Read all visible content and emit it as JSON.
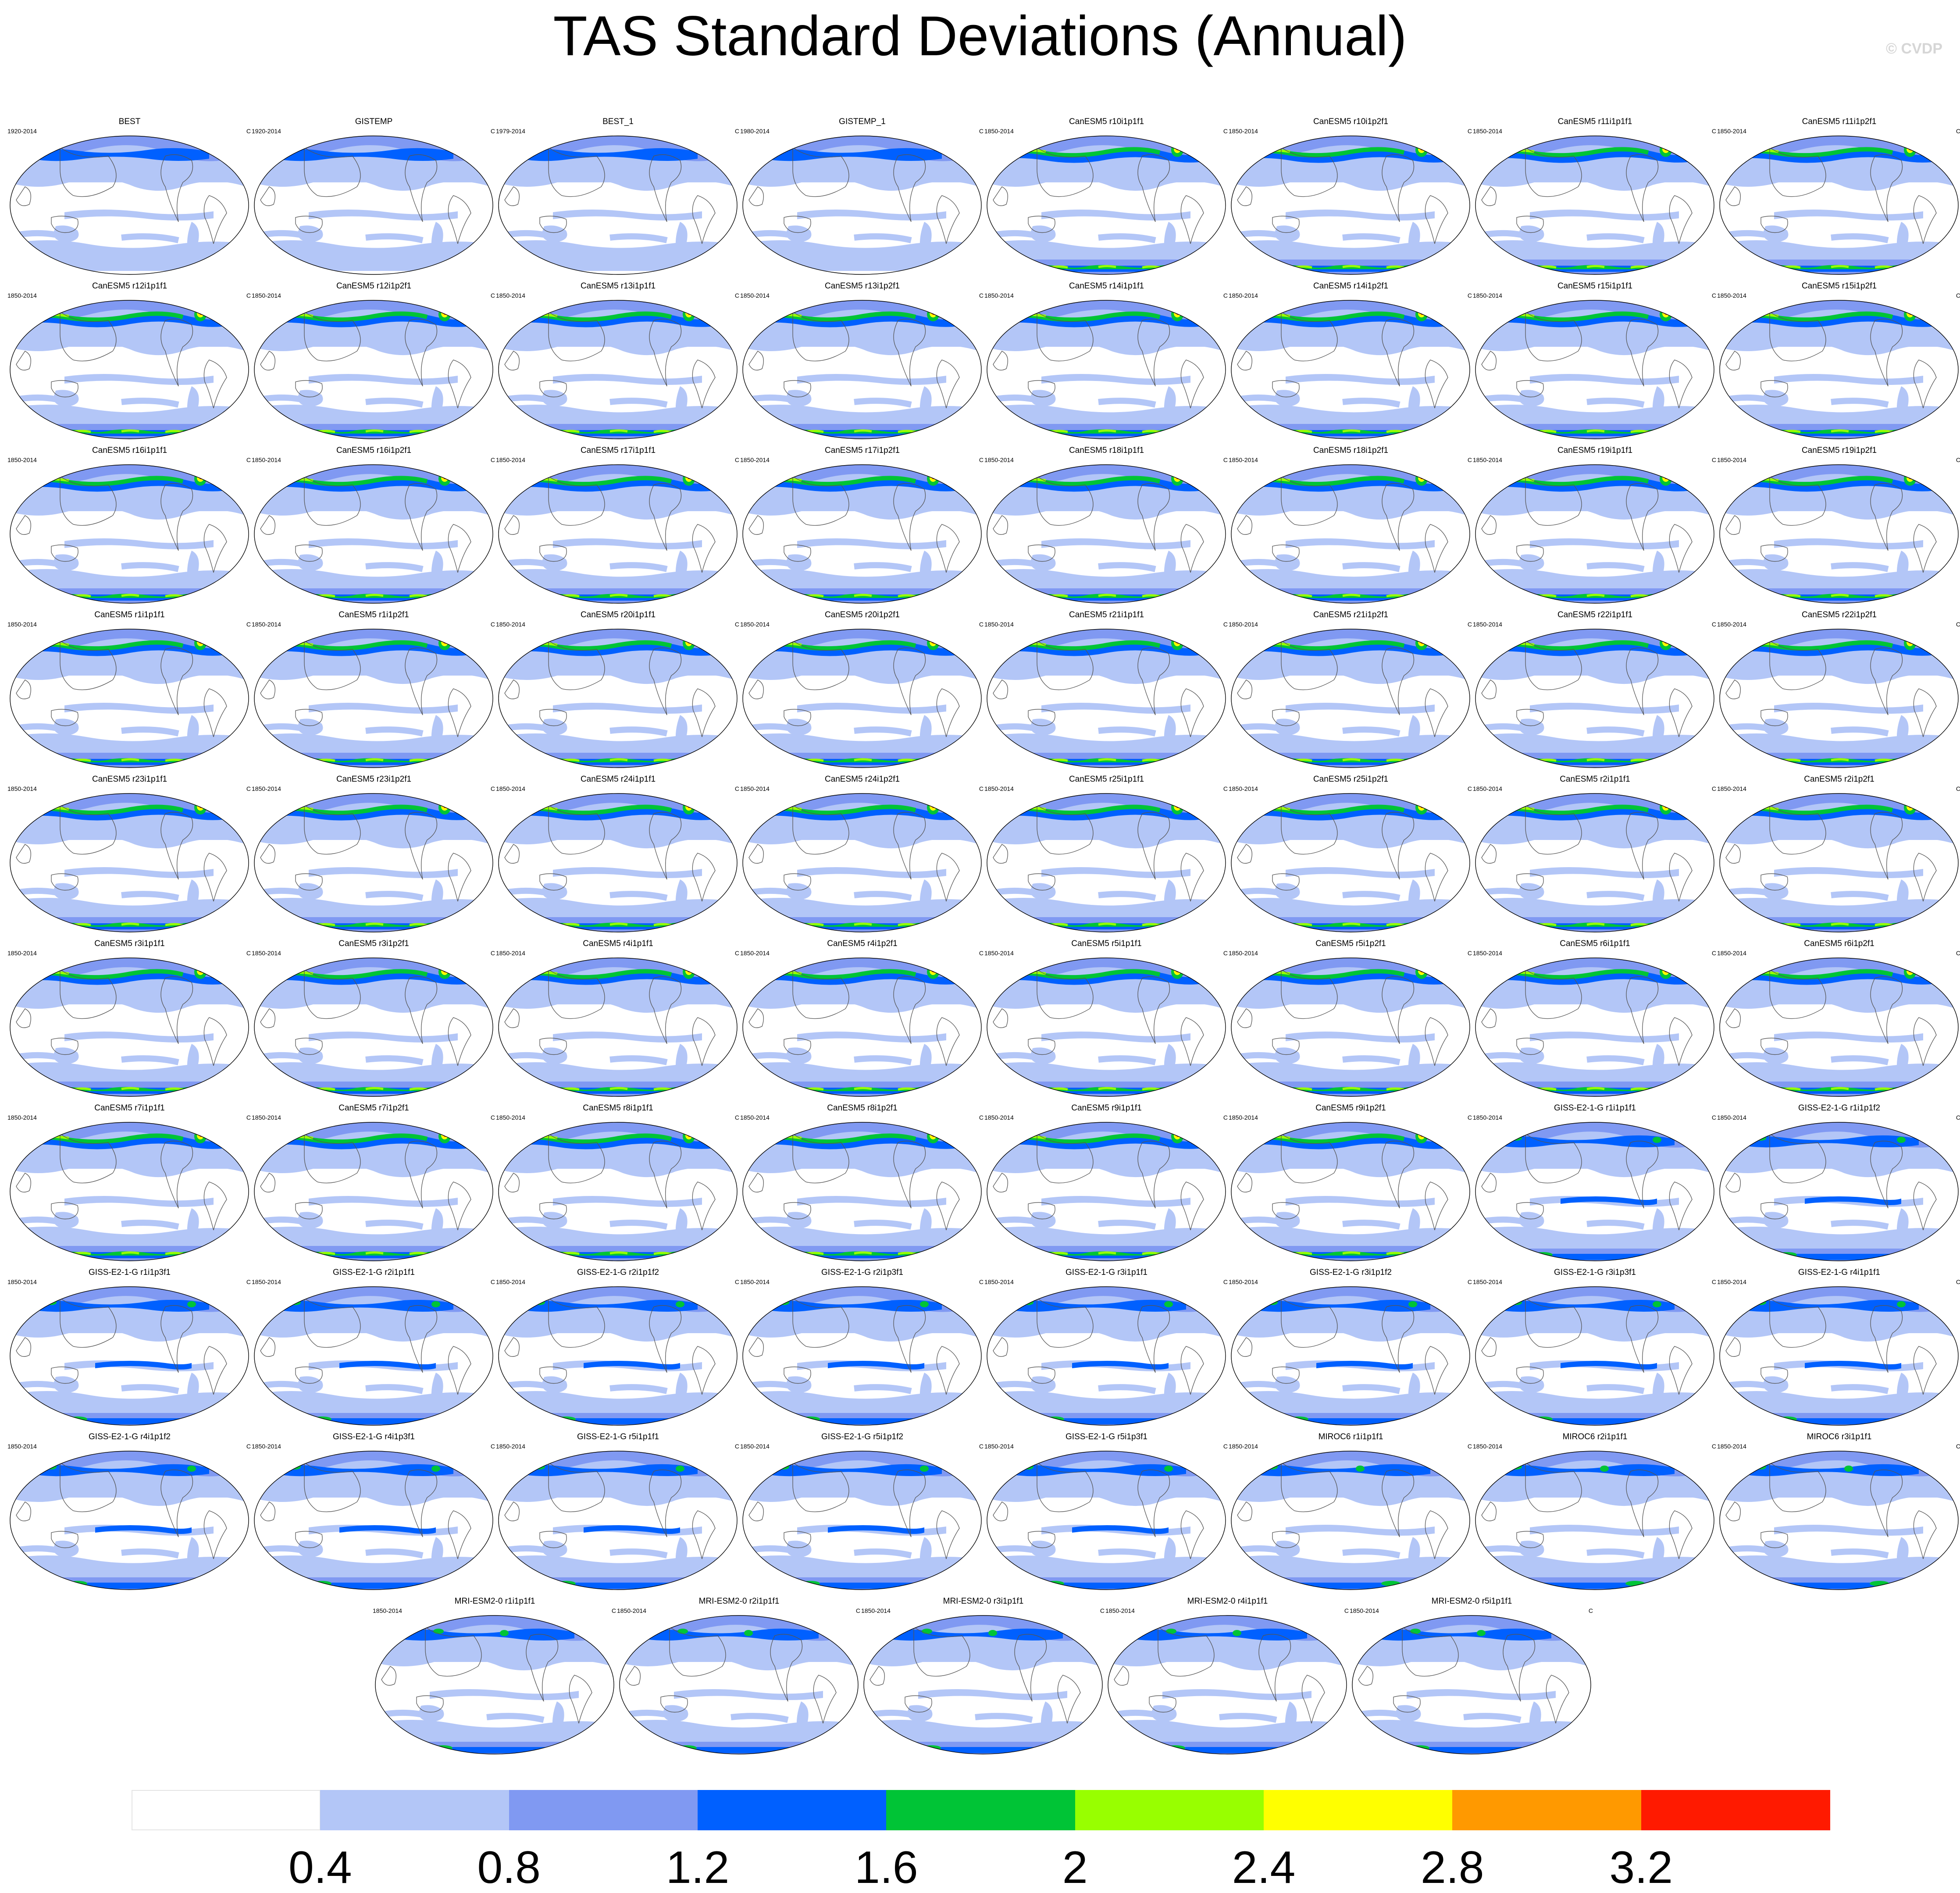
{
  "title": "TAS Standard Deviations (Annual)",
  "credit": "© CVDP",
  "colorbar": {
    "colors": [
      "#ffffff",
      "#b3c6f7",
      "#8099f2",
      "#0060ff",
      "#00c436",
      "#98ff00",
      "#ffff00",
      "#ff9900",
      "#ff1a00"
    ],
    "labels": [
      "0.4",
      "0.8",
      "1.2",
      "1.6",
      "2",
      "2.4",
      "2.8",
      "3.2"
    ]
  },
  "panel_rows": [
    [
      {
        "name": "BEST",
        "years": "1920-2014",
        "units": "C",
        "style": "obs"
      },
      {
        "name": "GISTEMP",
        "years": "1920-2014",
        "units": "C",
        "style": "obs"
      },
      {
        "name": "BEST_1",
        "years": "1979-2014",
        "units": "C",
        "style": "obs"
      },
      {
        "name": "GISTEMP_1",
        "years": "1980-2014",
        "units": "C",
        "style": "obs"
      },
      {
        "name": "CanESM5 r10i1p1f1",
        "years": "1850-2014",
        "units": "C",
        "style": "canesm"
      },
      {
        "name": "CanESM5 r10i1p2f1",
        "years": "1850-2014",
        "units": "C",
        "style": "canesm"
      },
      {
        "name": "CanESM5 r11i1p1f1",
        "years": "1850-2014",
        "units": "C",
        "style": "canesm"
      },
      {
        "name": "CanESM5 r11i1p2f1",
        "years": "1850-2014",
        "units": "C",
        "style": "canesm"
      }
    ],
    [
      {
        "name": "CanESM5 r12i1p1f1",
        "years": "1850-2014",
        "units": "C",
        "style": "canesm"
      },
      {
        "name": "CanESM5 r12i1p2f1",
        "years": "1850-2014",
        "units": "C",
        "style": "canesm"
      },
      {
        "name": "CanESM5 r13i1p1f1",
        "years": "1850-2014",
        "units": "C",
        "style": "canesm"
      },
      {
        "name": "CanESM5 r13i1p2f1",
        "years": "1850-2014",
        "units": "C",
        "style": "canesm"
      },
      {
        "name": "CanESM5 r14i1p1f1",
        "years": "1850-2014",
        "units": "C",
        "style": "canesm"
      },
      {
        "name": "CanESM5 r14i1p2f1",
        "years": "1850-2014",
        "units": "C",
        "style": "canesm"
      },
      {
        "name": "CanESM5 r15i1p1f1",
        "years": "1850-2014",
        "units": "C",
        "style": "canesm"
      },
      {
        "name": "CanESM5 r15i1p2f1",
        "years": "1850-2014",
        "units": "C",
        "style": "canesm"
      }
    ],
    [
      {
        "name": "CanESM5 r16i1p1f1",
        "years": "1850-2014",
        "units": "C",
        "style": "canesm"
      },
      {
        "name": "CanESM5 r16i1p2f1",
        "years": "1850-2014",
        "units": "C",
        "style": "canesm"
      },
      {
        "name": "CanESM5 r17i1p1f1",
        "years": "1850-2014",
        "units": "C",
        "style": "canesm"
      },
      {
        "name": "CanESM5 r17i1p2f1",
        "years": "1850-2014",
        "units": "C",
        "style": "canesm"
      },
      {
        "name": "CanESM5 r18i1p1f1",
        "years": "1850-2014",
        "units": "C",
        "style": "canesm"
      },
      {
        "name": "CanESM5 r18i1p2f1",
        "years": "1850-2014",
        "units": "C",
        "style": "canesm"
      },
      {
        "name": "CanESM5 r19i1p1f1",
        "years": "1850-2014",
        "units": "C",
        "style": "canesm"
      },
      {
        "name": "CanESM5 r19i1p2f1",
        "years": "1850-2014",
        "units": "C",
        "style": "canesm"
      }
    ],
    [
      {
        "name": "CanESM5 r1i1p1f1",
        "years": "1850-2014",
        "units": "C",
        "style": "canesm"
      },
      {
        "name": "CanESM5 r1i1p2f1",
        "years": "1850-2014",
        "units": "C",
        "style": "canesm"
      },
      {
        "name": "CanESM5 r20i1p1f1",
        "years": "1850-2014",
        "units": "C",
        "style": "canesm"
      },
      {
        "name": "CanESM5 r20i1p2f1",
        "years": "1850-2014",
        "units": "C",
        "style": "canesm"
      },
      {
        "name": "CanESM5 r21i1p1f1",
        "years": "1850-2014",
        "units": "C",
        "style": "canesm"
      },
      {
        "name": "CanESM5 r21i1p2f1",
        "years": "1850-2014",
        "units": "C",
        "style": "canesm"
      },
      {
        "name": "CanESM5 r22i1p1f1",
        "years": "1850-2014",
        "units": "C",
        "style": "canesm"
      },
      {
        "name": "CanESM5 r22i1p2f1",
        "years": "1850-2014",
        "units": "C",
        "style": "canesm"
      }
    ],
    [
      {
        "name": "CanESM5 r23i1p1f1",
        "years": "1850-2014",
        "units": "C",
        "style": "canesm"
      },
      {
        "name": "CanESM5 r23i1p2f1",
        "years": "1850-2014",
        "units": "C",
        "style": "canesm"
      },
      {
        "name": "CanESM5 r24i1p1f1",
        "years": "1850-2014",
        "units": "C",
        "style": "canesm"
      },
      {
        "name": "CanESM5 r24i1p2f1",
        "years": "1850-2014",
        "units": "C",
        "style": "canesm"
      },
      {
        "name": "CanESM5 r25i1p1f1",
        "years": "1850-2014",
        "units": "C",
        "style": "canesm"
      },
      {
        "name": "CanESM5 r25i1p2f1",
        "years": "1850-2014",
        "units": "C",
        "style": "canesm"
      },
      {
        "name": "CanESM5 r2i1p1f1",
        "years": "1850-2014",
        "units": "C",
        "style": "canesm"
      },
      {
        "name": "CanESM5 r2i1p2f1",
        "years": "1850-2014",
        "units": "C",
        "style": "canesm"
      }
    ],
    [
      {
        "name": "CanESM5 r3i1p1f1",
        "years": "1850-2014",
        "units": "C",
        "style": "canesm"
      },
      {
        "name": "CanESM5 r3i1p2f1",
        "years": "1850-2014",
        "units": "C",
        "style": "canesm"
      },
      {
        "name": "CanESM5 r4i1p1f1",
        "years": "1850-2014",
        "units": "C",
        "style": "canesm"
      },
      {
        "name": "CanESM5 r4i1p2f1",
        "years": "1850-2014",
        "units": "C",
        "style": "canesm"
      },
      {
        "name": "CanESM5 r5i1p1f1",
        "years": "1850-2014",
        "units": "C",
        "style": "canesm"
      },
      {
        "name": "CanESM5 r5i1p2f1",
        "years": "1850-2014",
        "units": "C",
        "style": "canesm"
      },
      {
        "name": "CanESM5 r6i1p1f1",
        "years": "1850-2014",
        "units": "C",
        "style": "canesm"
      },
      {
        "name": "CanESM5 r6i1p2f1",
        "years": "1850-2014",
        "units": "C",
        "style": "canesm"
      }
    ],
    [
      {
        "name": "CanESM5 r7i1p1f1",
        "years": "1850-2014",
        "units": "C",
        "style": "canesm"
      },
      {
        "name": "CanESM5 r7i1p2f1",
        "years": "1850-2014",
        "units": "C",
        "style": "canesm"
      },
      {
        "name": "CanESM5 r8i1p1f1",
        "years": "1850-2014",
        "units": "C",
        "style": "canesm"
      },
      {
        "name": "CanESM5 r8i1p2f1",
        "years": "1850-2014",
        "units": "C",
        "style": "canesm"
      },
      {
        "name": "CanESM5 r9i1p1f1",
        "years": "1850-2014",
        "units": "C",
        "style": "canesm"
      },
      {
        "name": "CanESM5 r9i1p2f1",
        "years": "1850-2014",
        "units": "C",
        "style": "canesm"
      },
      {
        "name": "GISS-E2-1-G r1i1p1f1",
        "years": "1850-2014",
        "units": "C",
        "style": "giss"
      },
      {
        "name": "GISS-E2-1-G r1i1p1f2",
        "years": "1850-2014",
        "units": "C",
        "style": "giss"
      }
    ],
    [
      {
        "name": "GISS-E2-1-G r1i1p3f1",
        "years": "1850-2014",
        "units": "C",
        "style": "giss"
      },
      {
        "name": "GISS-E2-1-G r2i1p1f1",
        "years": "1850-2014",
        "units": "C",
        "style": "giss"
      },
      {
        "name": "GISS-E2-1-G r2i1p1f2",
        "years": "1850-2014",
        "units": "C",
        "style": "giss"
      },
      {
        "name": "GISS-E2-1-G r2i1p3f1",
        "years": "1850-2014",
        "units": "C",
        "style": "giss"
      },
      {
        "name": "GISS-E2-1-G r3i1p1f1",
        "years": "1850-2014",
        "units": "C",
        "style": "giss"
      },
      {
        "name": "GISS-E2-1-G r3i1p1f2",
        "years": "1850-2014",
        "units": "C",
        "style": "giss"
      },
      {
        "name": "GISS-E2-1-G r3i1p3f1",
        "years": "1850-2014",
        "units": "C",
        "style": "giss"
      },
      {
        "name": "GISS-E2-1-G r4i1p1f1",
        "years": "1850-2014",
        "units": "C",
        "style": "giss"
      }
    ],
    [
      {
        "name": "GISS-E2-1-G r4i1p1f2",
        "years": "1850-2014",
        "units": "C",
        "style": "giss"
      },
      {
        "name": "GISS-E2-1-G r4i1p3f1",
        "years": "1850-2014",
        "units": "C",
        "style": "giss"
      },
      {
        "name": "GISS-E2-1-G r5i1p1f1",
        "years": "1850-2014",
        "units": "C",
        "style": "giss"
      },
      {
        "name": "GISS-E2-1-G r5i1p1f2",
        "years": "1850-2014",
        "units": "C",
        "style": "giss"
      },
      {
        "name": "GISS-E2-1-G r5i1p3f1",
        "years": "1850-2014",
        "units": "C",
        "style": "giss"
      },
      {
        "name": "MIROC6 r1i1p1f1",
        "years": "1850-2014",
        "units": "C",
        "style": "miroc"
      },
      {
        "name": "MIROC6 r2i1p1f1",
        "years": "1850-2014",
        "units": "C",
        "style": "miroc"
      },
      {
        "name": "MIROC6 r3i1p1f1",
        "years": "1850-2014",
        "units": "C",
        "style": "miroc"
      }
    ],
    [
      {
        "name": "MRI-ESM2-0 r1i1p1f1",
        "years": "1850-2014",
        "units": "C",
        "style": "mri"
      },
      {
        "name": "MRI-ESM2-0 r2i1p1f1",
        "years": "1850-2014",
        "units": "C",
        "style": "mri"
      },
      {
        "name": "MRI-ESM2-0 r3i1p1f1",
        "years": "1850-2014",
        "units": "C",
        "style": "mri"
      },
      {
        "name": "MRI-ESM2-0 r4i1p1f1",
        "years": "1850-2014",
        "units": "C",
        "style": "mri"
      },
      {
        "name": "MRI-ESM2-0 r5i1p1f1",
        "years": "1850-2014",
        "units": "C",
        "style": "mri"
      }
    ]
  ]
}
